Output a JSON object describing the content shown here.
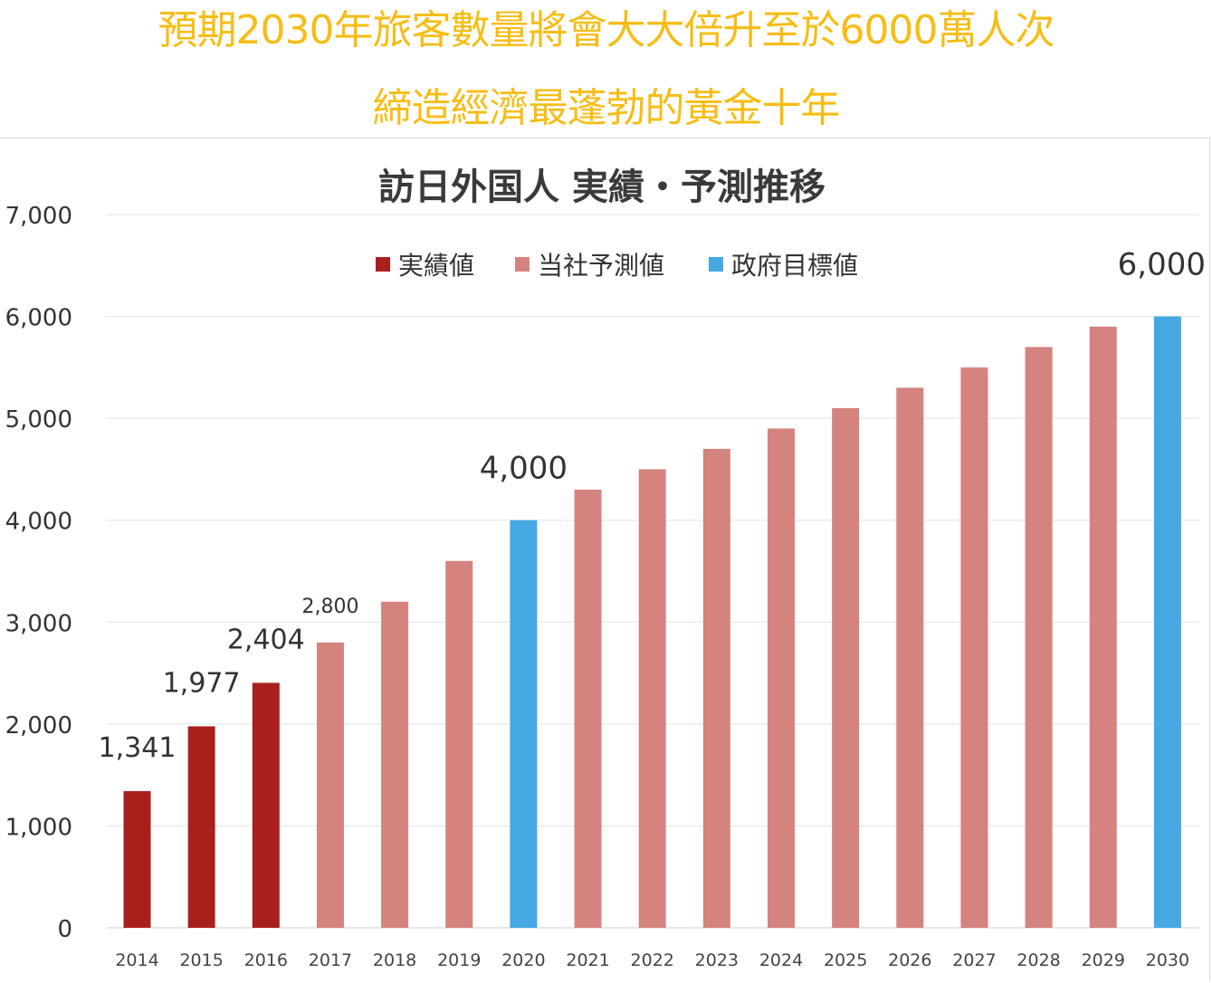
{
  "headline": {
    "line1": "預期2030年旅客數量將會大大倍升至於6000萬人次",
    "line2": "締造經濟最蓬勃的黃金十年"
  },
  "colors": {
    "headline": "#f6bd16",
    "actual": "#a81f1c",
    "forecast": "#d4837f",
    "target": "#45a8e2",
    "grid": "#e3e3e3",
    "axis_text": "#333333"
  },
  "chart_data": {
    "type": "bar",
    "title": "訪日外国人 実績・予測推移",
    "xlabel": "",
    "ylabel": "",
    "ylim": [
      0,
      7000
    ],
    "yticks": [
      0,
      1000,
      2000,
      3000,
      4000,
      5000,
      6000,
      7000
    ],
    "ytick_labels": [
      "0",
      "1,000",
      "2,000",
      "3,000",
      "4,000",
      "5,000",
      "6,000",
      "7,000"
    ],
    "grid": true,
    "legend_position": "top-center",
    "legend": [
      {
        "label": "実績値",
        "kind": "actual"
      },
      {
        "label": "当社予測値",
        "kind": "forecast"
      },
      {
        "label": "政府目標値",
        "kind": "target"
      }
    ],
    "categories": [
      "2014",
      "2015",
      "2016",
      "2017",
      "2018",
      "2019",
      "2020",
      "2021",
      "2022",
      "2023",
      "2024",
      "2025",
      "2026",
      "2027",
      "2028",
      "2029",
      "2030"
    ],
    "values": [
      1341,
      1977,
      2404,
      2800,
      3200,
      3600,
      4000,
      4300,
      4500,
      4700,
      4900,
      5100,
      5300,
      5500,
      5700,
      5900,
      6000
    ],
    "kinds": [
      "actual",
      "actual",
      "actual",
      "forecast",
      "forecast",
      "forecast",
      "target",
      "forecast",
      "forecast",
      "forecast",
      "forecast",
      "forecast",
      "forecast",
      "forecast",
      "forecast",
      "forecast",
      "target"
    ],
    "data_labels": [
      {
        "index": 0,
        "text": "1,341",
        "size": "large"
      },
      {
        "index": 1,
        "text": "1,977",
        "size": "large"
      },
      {
        "index": 2,
        "text": "2,404",
        "size": "large"
      },
      {
        "index": 3,
        "text": "2,800",
        "size": "small"
      },
      {
        "index": 6,
        "text": "4,000",
        "size": "xlarge"
      },
      {
        "index": 16,
        "text": "6,000",
        "size": "xlarge"
      }
    ]
  }
}
